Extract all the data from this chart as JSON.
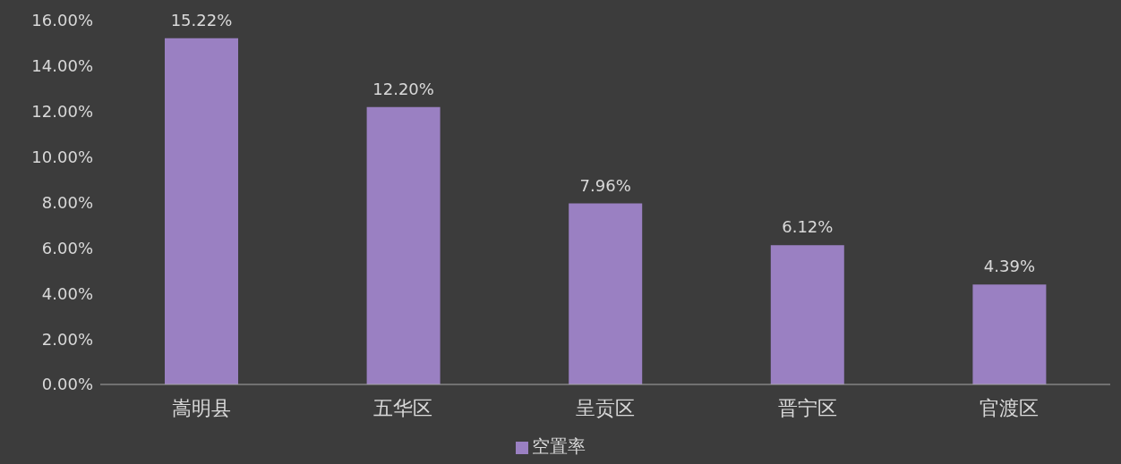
{
  "chart_data": {
    "type": "bar",
    "categories": [
      "嵩明县",
      "五华区",
      "呈贡区",
      "晋宁区",
      "官渡区"
    ],
    "series": [
      {
        "name": "空置率",
        "color": "#9a80c2",
        "values": [
          15.22,
          12.2,
          7.96,
          6.12,
          4.39
        ],
        "value_labels": [
          "15.22%",
          "12.20%",
          "7.96%",
          "6.12%",
          "4.39%"
        ]
      }
    ],
    "ylim": [
      0,
      16
    ],
    "yticks": [
      {
        "value": 0,
        "label": "0.00%"
      },
      {
        "value": 2,
        "label": "2.00%"
      },
      {
        "value": 4,
        "label": "4.00%"
      },
      {
        "value": 6,
        "label": "6.00%"
      },
      {
        "value": 8,
        "label": "8.00%"
      },
      {
        "value": 10,
        "label": "10.00%"
      },
      {
        "value": 12,
        "label": "12.00%"
      },
      {
        "value": 14,
        "label": "14.00%"
      },
      {
        "value": 16,
        "label": "16.00%"
      }
    ],
    "grid": false,
    "legend": "bottom"
  }
}
